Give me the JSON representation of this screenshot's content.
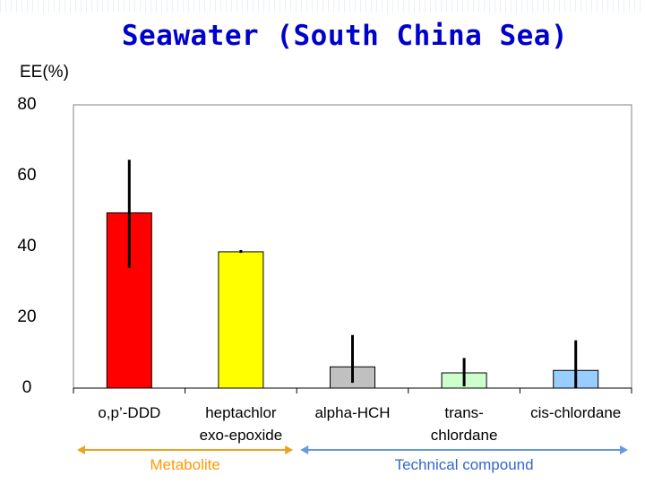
{
  "chart_data": {
    "type": "bar",
    "title": "Seawater (South China Sea)",
    "ylabel": "EE(%)",
    "ylim": [
      0,
      80
    ],
    "yticks": [
      0,
      20,
      40,
      60,
      80
    ],
    "grid": false,
    "categories": [
      "o,p’-DDD",
      "heptachlor\nexo-epoxide",
      "alpha-HCH",
      "trans-\nchlordane",
      "cis-chlordane"
    ],
    "values": [
      49.5,
      38.5,
      6,
      4.3,
      5
    ],
    "error_low": [
      34,
      38.2,
      1.5,
      0.5,
      0
    ],
    "error_high": [
      64.5,
      39,
      15,
      8.5,
      13.5
    ],
    "bar_colors": [
      "#ff0000",
      "#ffff00",
      "#c0c0c0",
      "#ccffcc",
      "#99ccff"
    ],
    "groups": [
      {
        "label": "Metabolite",
        "color": "#ff9900",
        "arrow_color": "#f0a020",
        "from": 0,
        "to": 1
      },
      {
        "label": "Technical compound",
        "color": "#3366cc",
        "arrow_color": "#6699e0",
        "from": 2,
        "to": 4
      }
    ]
  }
}
